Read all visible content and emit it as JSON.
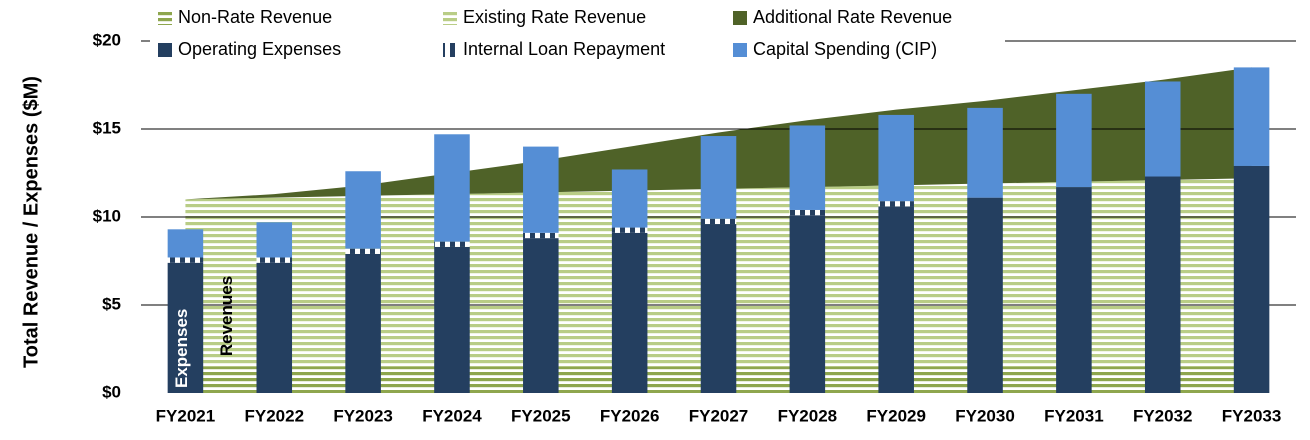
{
  "chart_data": {
    "type": "combo",
    "y_label": "Total Revenue / Expenses ($M)",
    "annotations": [
      "Expenses",
      "Revenues"
    ],
    "categories": [
      "FY2021",
      "FY2022",
      "FY2023",
      "FY2024",
      "FY2025",
      "FY2026",
      "FY2027",
      "FY2028",
      "FY2029",
      "FY2030",
      "FY2031",
      "FY2032",
      "FY2033"
    ],
    "series": [
      {
        "name": "Non-Rate Revenue",
        "type": "area",
        "pattern": "stripes",
        "color": "#8ea64e",
        "values": [
          1.5,
          1.5,
          1.5,
          1.5,
          1.5,
          1.5,
          1.5,
          1.5,
          1.5,
          1.5,
          1.5,
          1.5,
          1.5
        ]
      },
      {
        "name": "Existing Rate Revenue",
        "type": "area",
        "pattern": "stripes",
        "color": "#b9cd86",
        "values": [
          9.5,
          9.6,
          9.7,
          9.8,
          9.9,
          10.0,
          10.1,
          10.2,
          10.3,
          10.4,
          10.5,
          10.6,
          10.7
        ]
      },
      {
        "name": "Additional Rate Revenue",
        "type": "area",
        "pattern": "solid",
        "color": "#4f6228",
        "values": [
          0,
          0.2,
          0.6,
          1.2,
          1.8,
          2.5,
          3.2,
          3.8,
          4.3,
          4.7,
          5.2,
          5.7,
          6.3
        ]
      },
      {
        "name": "Operating Expenses",
        "type": "bar",
        "pattern": "solid",
        "color": "#243f60",
        "values": [
          7.4,
          7.4,
          7.9,
          8.3,
          8.8,
          9.1,
          9.6,
          10.1,
          10.6,
          11.1,
          11.7,
          12.3,
          12.9
        ]
      },
      {
        "name": "Internal Loan Repayment",
        "type": "bar",
        "pattern": "dashes",
        "color": "#243f60",
        "values": [
          0.3,
          0.3,
          0.3,
          0.3,
          0.3,
          0.3,
          0.3,
          0.3,
          0.3,
          0,
          0,
          0,
          0
        ]
      },
      {
        "name": "Capital Spending (CIP)",
        "type": "bar",
        "pattern": "solid",
        "color": "#558ed5",
        "values": [
          1.6,
          2.0,
          4.4,
          6.1,
          4.9,
          3.3,
          4.7,
          4.8,
          4.9,
          5.1,
          5.3,
          5.4,
          5.6
        ]
      }
    ],
    "ylim": [
      0,
      20
    ],
    "yticks": [
      {
        "value": 0,
        "label": "$0"
      },
      {
        "value": 5,
        "label": "$5"
      },
      {
        "value": 10,
        "label": "$10"
      },
      {
        "value": 15,
        "label": "$15"
      },
      {
        "value": 20,
        "label": "$20"
      }
    ],
    "grid": true,
    "legend": "top"
  }
}
